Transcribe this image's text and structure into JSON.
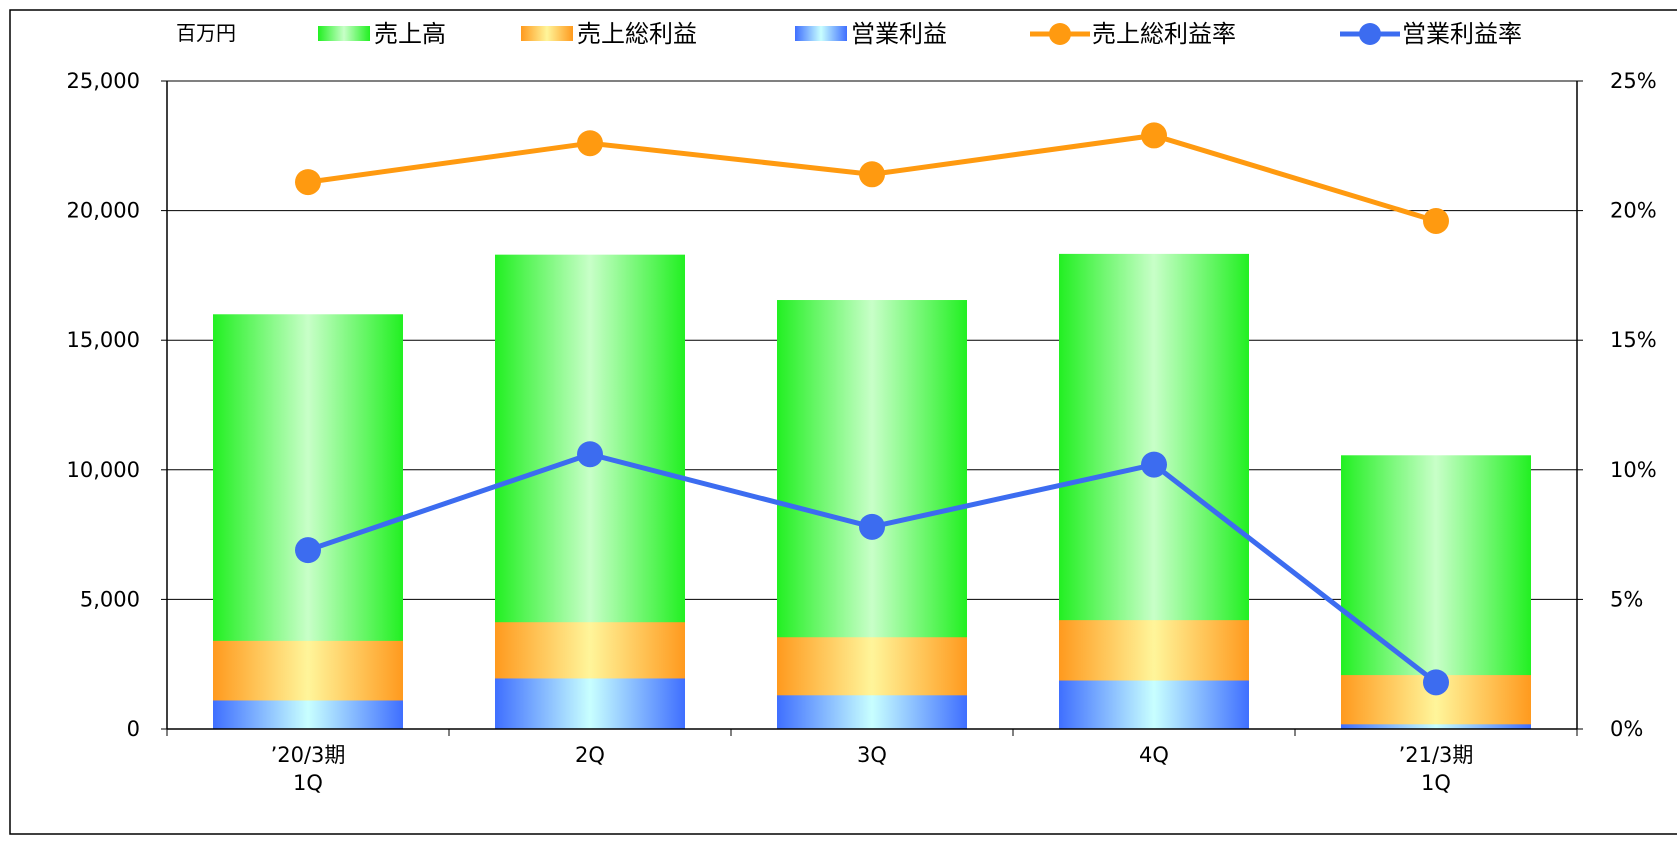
{
  "unit_label": "百万円",
  "legend": [
    {
      "key": "sales",
      "label": "売上高",
      "kind": "bar"
    },
    {
      "key": "gross",
      "label": "売上総利益",
      "kind": "bar"
    },
    {
      "key": "op",
      "label": "営業利益",
      "kind": "bar"
    },
    {
      "key": "gross_rate",
      "label": "売上総利益率",
      "kind": "line"
    },
    {
      "key": "op_rate",
      "label": "営業利益率",
      "kind": "line"
    }
  ],
  "colors": {
    "sales_edge": "#22f022",
    "sales_mid": "#c8ffc8",
    "gross_edge": "#ff9a1e",
    "gross_mid": "#fff59a",
    "op_edge": "#3f6fff",
    "op_mid": "#c8ffff",
    "gross_rate": "#ff9a10",
    "op_rate": "#3c6cf0"
  },
  "chart_data": {
    "type": "bar",
    "title": "",
    "categories": [
      [
        "’20/3期",
        "1Q"
      ],
      [
        "2Q"
      ],
      [
        "3Q"
      ],
      [
        "4Q"
      ],
      [
        "’21/3期",
        "1Q"
      ]
    ],
    "series": [
      {
        "name": "売上高",
        "axis": "left",
        "type": "bar",
        "values": [
          16000,
          18300,
          16550,
          18330,
          10560
        ]
      },
      {
        "name": "売上総利益",
        "axis": "left",
        "type": "bar",
        "values": [
          3400,
          4120,
          3540,
          4200,
          2080
        ]
      },
      {
        "name": "営業利益",
        "axis": "left",
        "type": "bar",
        "values": [
          1100,
          1950,
          1300,
          1870,
          180
        ]
      },
      {
        "name": "売上総利益率",
        "axis": "right",
        "type": "line",
        "values": [
          21.1,
          22.6,
          21.4,
          22.9,
          19.6
        ]
      },
      {
        "name": "営業利益率",
        "axis": "right",
        "type": "line",
        "values": [
          6.9,
          10.6,
          7.8,
          10.2,
          1.8
        ]
      }
    ],
    "y_left": {
      "min": 0,
      "max": 25000,
      "ticks": [
        "0",
        "5,000",
        "10,000",
        "15,000",
        "20,000",
        "25,000"
      ]
    },
    "y_right": {
      "min": 0,
      "max": 25,
      "ticks": [
        "0%",
        "5%",
        "10%",
        "15%",
        "20%",
        "25%"
      ]
    },
    "grid": true,
    "legend_position": "top"
  }
}
